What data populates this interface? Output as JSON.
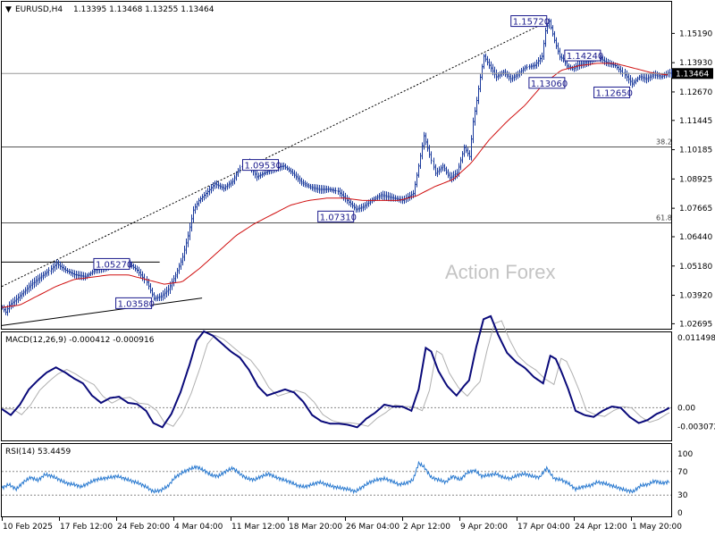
{
  "header": {
    "symbol": "EURUSD,H4",
    "ohlc": "1.13395 1.13468 1.13255 1.13464",
    "indicator_arrow_glyph": "▼"
  },
  "watermark": "Action Forex",
  "colors": {
    "price_bars": "#1a3a9c",
    "ma_line": "#d01010",
    "macd_line": "#0a0a7a",
    "macd_signal": "#b0b0b0",
    "rsi_line": "#2a7ad0",
    "grid_level": "#888888",
    "current_price_bg": "#000000"
  },
  "chart_data": [
    {
      "type": "line",
      "name_label": "main-price-chart",
      "yticks": [
        "1.15190",
        "1.13930",
        "1.12670",
        "1.11445",
        "1.10185",
        "1.08925",
        "1.07665",
        "1.06440",
        "1.05180",
        "1.03920",
        "1.02695"
      ],
      "current_price_label": "1.13464",
      "current_price": 1.13464,
      "ylim": [
        1.0248,
        1.1655
      ],
      "xticks": [
        "10 Feb 2025",
        "17 Feb 12:00",
        "24 Feb 20:00",
        "4 Mar 04:00",
        "11 Mar 12:00",
        "18 Mar 20:00",
        "26 Mar 04:00",
        "2 Apr 12:00",
        "9 Apr 20:00",
        "17 Apr 04:00",
        "24 Apr 12:00",
        "1 May 20:00"
      ],
      "price_path": [
        [
          0,
          1.034
        ],
        [
          4,
          1.032
        ],
        [
          8,
          1.035
        ],
        [
          14,
          1.037
        ],
        [
          22,
          1.04
        ],
        [
          32,
          1.044
        ],
        [
          42,
          1.047
        ],
        [
          52,
          1.05
        ],
        [
          60,
          1.053
        ],
        [
          70,
          1.05
        ],
        [
          80,
          1.048
        ],
        [
          92,
          1.047
        ],
        [
          104,
          1.05
        ],
        [
          116,
          1.051
        ],
        [
          128,
          1.052
        ],
        [
          140,
          1.053
        ],
        [
          150,
          1.05
        ],
        [
          160,
          1.045
        ],
        [
          168,
          1.038
        ],
        [
          176,
          1.039
        ],
        [
          184,
          1.042
        ],
        [
          192,
          1.048
        ],
        [
          200,
          1.056
        ],
        [
          206,
          1.065
        ],
        [
          212,
          1.076
        ],
        [
          218,
          1.08
        ],
        [
          226,
          1.083
        ],
        [
          236,
          1.087
        ],
        [
          246,
          1.085
        ],
        [
          256,
          1.088
        ],
        [
          264,
          1.094
        ],
        [
          272,
          1.096
        ],
        [
          282,
          1.09
        ],
        [
          292,
          1.092
        ],
        [
          302,
          1.094
        ],
        [
          312,
          1.095
        ],
        [
          322,
          1.092
        ],
        [
          332,
          1.088
        ],
        [
          342,
          1.086
        ],
        [
          352,
          1.085
        ],
        [
          362,
          1.085
        ],
        [
          372,
          1.084
        ],
        [
          382,
          1.08
        ],
        [
          392,
          1.076
        ],
        [
          400,
          1.077
        ],
        [
          410,
          1.08
        ],
        [
          420,
          1.082
        ],
        [
          432,
          1.081
        ],
        [
          444,
          1.08
        ],
        [
          456,
          1.083
        ],
        [
          462,
          1.095
        ],
        [
          468,
          1.108
        ],
        [
          474,
          1.1
        ],
        [
          480,
          1.092
        ],
        [
          488,
          1.095
        ],
        [
          496,
          1.09
        ],
        [
          504,
          1.092
        ],
        [
          512,
          1.103
        ],
        [
          518,
          1.099
        ],
        [
          522,
          1.114
        ],
        [
          526,
          1.123
        ],
        [
          530,
          1.133
        ],
        [
          534,
          1.142
        ],
        [
          540,
          1.138
        ],
        [
          548,
          1.133
        ],
        [
          556,
          1.135
        ],
        [
          564,
          1.132
        ],
        [
          572,
          1.134
        ],
        [
          580,
          1.137
        ],
        [
          590,
          1.138
        ],
        [
          598,
          1.142
        ],
        [
          602,
          1.153
        ],
        [
          606,
          1.1572
        ],
        [
          612,
          1.149
        ],
        [
          618,
          1.142
        ],
        [
          622,
          1.141
        ],
        [
          626,
          1.138
        ],
        [
          632,
          1.137
        ],
        [
          640,
          1.139
        ],
        [
          650,
          1.14
        ],
        [
          660,
          1.142
        ],
        [
          670,
          1.1395
        ],
        [
          680,
          1.138
        ],
        [
          690,
          1.134
        ],
        [
          698,
          1.13
        ],
        [
          706,
          1.133
        ],
        [
          714,
          1.132
        ],
        [
          722,
          1.134
        ],
        [
          730,
          1.133
        ],
        [
          738,
          1.1346
        ]
      ],
      "ma_path": [
        [
          0,
          1.034
        ],
        [
          20,
          1.035
        ],
        [
          40,
          1.039
        ],
        [
          60,
          1.043
        ],
        [
          80,
          1.046
        ],
        [
          100,
          1.047
        ],
        [
          120,
          1.048
        ],
        [
          140,
          1.048
        ],
        [
          160,
          1.046
        ],
        [
          180,
          1.044
        ],
        [
          200,
          1.045
        ],
        [
          220,
          1.051
        ],
        [
          240,
          1.058
        ],
        [
          260,
          1.065
        ],
        [
          280,
          1.07
        ],
        [
          300,
          1.074
        ],
        [
          320,
          1.078
        ],
        [
          340,
          1.08
        ],
        [
          360,
          1.081
        ],
        [
          380,
          1.081
        ],
        [
          400,
          1.08
        ],
        [
          420,
          1.08
        ],
        [
          440,
          1.08
        ],
        [
          460,
          1.082
        ],
        [
          480,
          1.086
        ],
        [
          500,
          1.089
        ],
        [
          520,
          1.096
        ],
        [
          540,
          1.106
        ],
        [
          560,
          1.114
        ],
        [
          580,
          1.121
        ],
        [
          600,
          1.13
        ],
        [
          620,
          1.136
        ],
        [
          640,
          1.138
        ],
        [
          660,
          1.139
        ],
        [
          680,
          1.139
        ],
        [
          700,
          1.137
        ],
        [
          720,
          1.135
        ],
        [
          738,
          1.134
        ]
      ],
      "annotations": [
        {
          "text": "1.15720",
          "x": 606,
          "y": 1.1572,
          "box_side": "left"
        },
        {
          "text": "1.14240",
          "x": 622,
          "y": 1.1424,
          "box_side": "right"
        },
        {
          "text": "1.13060",
          "x": 626,
          "y": 1.1306,
          "box_side": "left"
        },
        {
          "text": "1.12650",
          "x": 698,
          "y": 1.1265,
          "box_side": "left"
        },
        {
          "text": "1.09530",
          "x": 265,
          "y": 1.0953,
          "box_side": "right"
        },
        {
          "text": "1.07310",
          "x": 392,
          "y": 1.0731,
          "box_side": "left"
        },
        {
          "text": "1.05270",
          "x": 100,
          "y": 1.0527,
          "box_side": "right"
        },
        {
          "text": "1.03580",
          "x": 168,
          "y": 1.0358,
          "box_side": "left"
        }
      ],
      "fib_levels": [
        {
          "label": "38.2",
          "value": 1.1031
        },
        {
          "label": "61.8",
          "value": 1.0705
        }
      ],
      "trendlines": [
        {
          "style": "dotted",
          "from": [
            0,
            1.043
          ],
          "to": [
            606,
            1.1572
          ]
        },
        {
          "style": "solid",
          "from": [
            0,
            1.0262
          ],
          "to": [
            222,
            1.038
          ]
        },
        {
          "style": "solid",
          "from": [
            0,
            1.0535
          ],
          "to": [
            175,
            1.0535
          ]
        }
      ]
    },
    {
      "type": "line",
      "name_label": "macd-panel",
      "title": "MACD(12,26,9) -0.000412 -0.000916",
      "yticks": [
        "0.011498",
        "0.00",
        "-0.003072"
      ],
      "ylim": [
        -0.0052,
        0.0122
      ],
      "macd_path": [
        [
          0,
          -0.0002
        ],
        [
          10,
          -0.0012
        ],
        [
          20,
          0.0005
        ],
        [
          30,
          0.003
        ],
        [
          40,
          0.0045
        ],
        [
          50,
          0.0058
        ],
        [
          60,
          0.0066
        ],
        [
          70,
          0.0058
        ],
        [
          80,
          0.0048
        ],
        [
          90,
          0.004
        ],
        [
          100,
          0.002
        ],
        [
          110,
          0.0008
        ],
        [
          120,
          0.0016
        ],
        [
          130,
          0.0018
        ],
        [
          140,
          0.0008
        ],
        [
          150,
          0.0006
        ],
        [
          160,
          -0.0005
        ],
        [
          168,
          -0.0025
        ],
        [
          178,
          -0.0032
        ],
        [
          188,
          -0.001
        ],
        [
          198,
          0.0025
        ],
        [
          208,
          0.007
        ],
        [
          216,
          0.011
        ],
        [
          224,
          0.0125
        ],
        [
          234,
          0.0118
        ],
        [
          244,
          0.0105
        ],
        [
          254,
          0.0092
        ],
        [
          264,
          0.0082
        ],
        [
          274,
          0.0062
        ],
        [
          284,
          0.0035
        ],
        [
          294,
          0.002
        ],
        [
          304,
          0.0025
        ],
        [
          314,
          0.003
        ],
        [
          324,
          0.0025
        ],
        [
          334,
          0.001
        ],
        [
          344,
          -0.0012
        ],
        [
          354,
          -0.0022
        ],
        [
          364,
          -0.0026
        ],
        [
          374,
          -0.0026
        ],
        [
          384,
          -0.0028
        ],
        [
          394,
          -0.0032
        ],
        [
          404,
          -0.0018
        ],
        [
          414,
          -0.0008
        ],
        [
          424,
          0.0005
        ],
        [
          434,
          0.0002
        ],
        [
          444,
          0.0002
        ],
        [
          454,
          -0.0005
        ],
        [
          462,
          0.003
        ],
        [
          470,
          0.0098
        ],
        [
          476,
          0.0092
        ],
        [
          484,
          0.006
        ],
        [
          494,
          0.0035
        ],
        [
          504,
          0.002
        ],
        [
          512,
          0.0035
        ],
        [
          518,
          0.0045
        ],
        [
          526,
          0.01
        ],
        [
          534,
          0.0145
        ],
        [
          542,
          0.015
        ],
        [
          550,
          0.012
        ],
        [
          560,
          0.009
        ],
        [
          570,
          0.0075
        ],
        [
          580,
          0.0065
        ],
        [
          590,
          0.005
        ],
        [
          600,
          0.004
        ],
        [
          608,
          0.0085
        ],
        [
          614,
          0.008
        ],
        [
          620,
          0.006
        ],
        [
          628,
          0.003
        ],
        [
          636,
          -0.0005
        ],
        [
          646,
          -0.0012
        ],
        [
          656,
          -0.0015
        ],
        [
          666,
          -0.0005
        ],
        [
          676,
          0.0002
        ],
        [
          686,
          0.0
        ],
        [
          696,
          -0.0015
        ],
        [
          706,
          -0.0025
        ],
        [
          716,
          -0.002
        ],
        [
          726,
          -0.001
        ],
        [
          734,
          -0.0005
        ],
        [
          740,
          0.0
        ]
      ]
    },
    {
      "type": "line",
      "name_label": "rsi-panel",
      "title": "RSI(14) 53.4459",
      "yticks": [
        "100",
        "70",
        "30",
        "0"
      ],
      "ylim": [
        0,
        100
      ],
      "rsi_path": [
        [
          0,
          42
        ],
        [
          8,
          48
        ],
        [
          16,
          40
        ],
        [
          24,
          52
        ],
        [
          32,
          60
        ],
        [
          40,
          55
        ],
        [
          48,
          65
        ],
        [
          56,
          62
        ],
        [
          64,
          56
        ],
        [
          72,
          50
        ],
        [
          80,
          48
        ],
        [
          88,
          44
        ],
        [
          96,
          50
        ],
        [
          104,
          56
        ],
        [
          112,
          58
        ],
        [
          120,
          60
        ],
        [
          128,
          62
        ],
        [
          136,
          58
        ],
        [
          144,
          54
        ],
        [
          152,
          50
        ],
        [
          160,
          44
        ],
        [
          168,
          36
        ],
        [
          176,
          38
        ],
        [
          184,
          45
        ],
        [
          192,
          60
        ],
        [
          200,
          68
        ],
        [
          208,
          74
        ],
        [
          216,
          78
        ],
        [
          224,
          72
        ],
        [
          232,
          64
        ],
        [
          240,
          62
        ],
        [
          248,
          70
        ],
        [
          256,
          76
        ],
        [
          264,
          66
        ],
        [
          272,
          58
        ],
        [
          280,
          56
        ],
        [
          288,
          62
        ],
        [
          296,
          66
        ],
        [
          304,
          60
        ],
        [
          312,
          56
        ],
        [
          320,
          52
        ],
        [
          328,
          46
        ],
        [
          336,
          44
        ],
        [
          344,
          48
        ],
        [
          352,
          52
        ],
        [
          360,
          48
        ],
        [
          368,
          44
        ],
        [
          376,
          42
        ],
        [
          384,
          40
        ],
        [
          392,
          36
        ],
        [
          400,
          44
        ],
        [
          408,
          52
        ],
        [
          416,
          56
        ],
        [
          424,
          58
        ],
        [
          432,
          54
        ],
        [
          440,
          48
        ],
        [
          448,
          50
        ],
        [
          456,
          56
        ],
        [
          462,
          84
        ],
        [
          468,
          78
        ],
        [
          476,
          60
        ],
        [
          484,
          56
        ],
        [
          492,
          52
        ],
        [
          500,
          62
        ],
        [
          508,
          56
        ],
        [
          516,
          68
        ],
        [
          524,
          72
        ],
        [
          532,
          62
        ],
        [
          540,
          64
        ],
        [
          548,
          66
        ],
        [
          556,
          60
        ],
        [
          564,
          58
        ],
        [
          572,
          64
        ],
        [
          580,
          66
        ],
        [
          588,
          62
        ],
        [
          596,
          60
        ],
        [
          604,
          76
        ],
        [
          612,
          58
        ],
        [
          620,
          56
        ],
        [
          628,
          50
        ],
        [
          636,
          40
        ],
        [
          644,
          44
        ],
        [
          652,
          46
        ],
        [
          660,
          52
        ],
        [
          668,
          50
        ],
        [
          676,
          46
        ],
        [
          684,
          42
        ],
        [
          692,
          38
        ],
        [
          700,
          36
        ],
        [
          708,
          46
        ],
        [
          716,
          48
        ],
        [
          724,
          54
        ],
        [
          732,
          50
        ],
        [
          740,
          53
        ]
      ]
    }
  ]
}
